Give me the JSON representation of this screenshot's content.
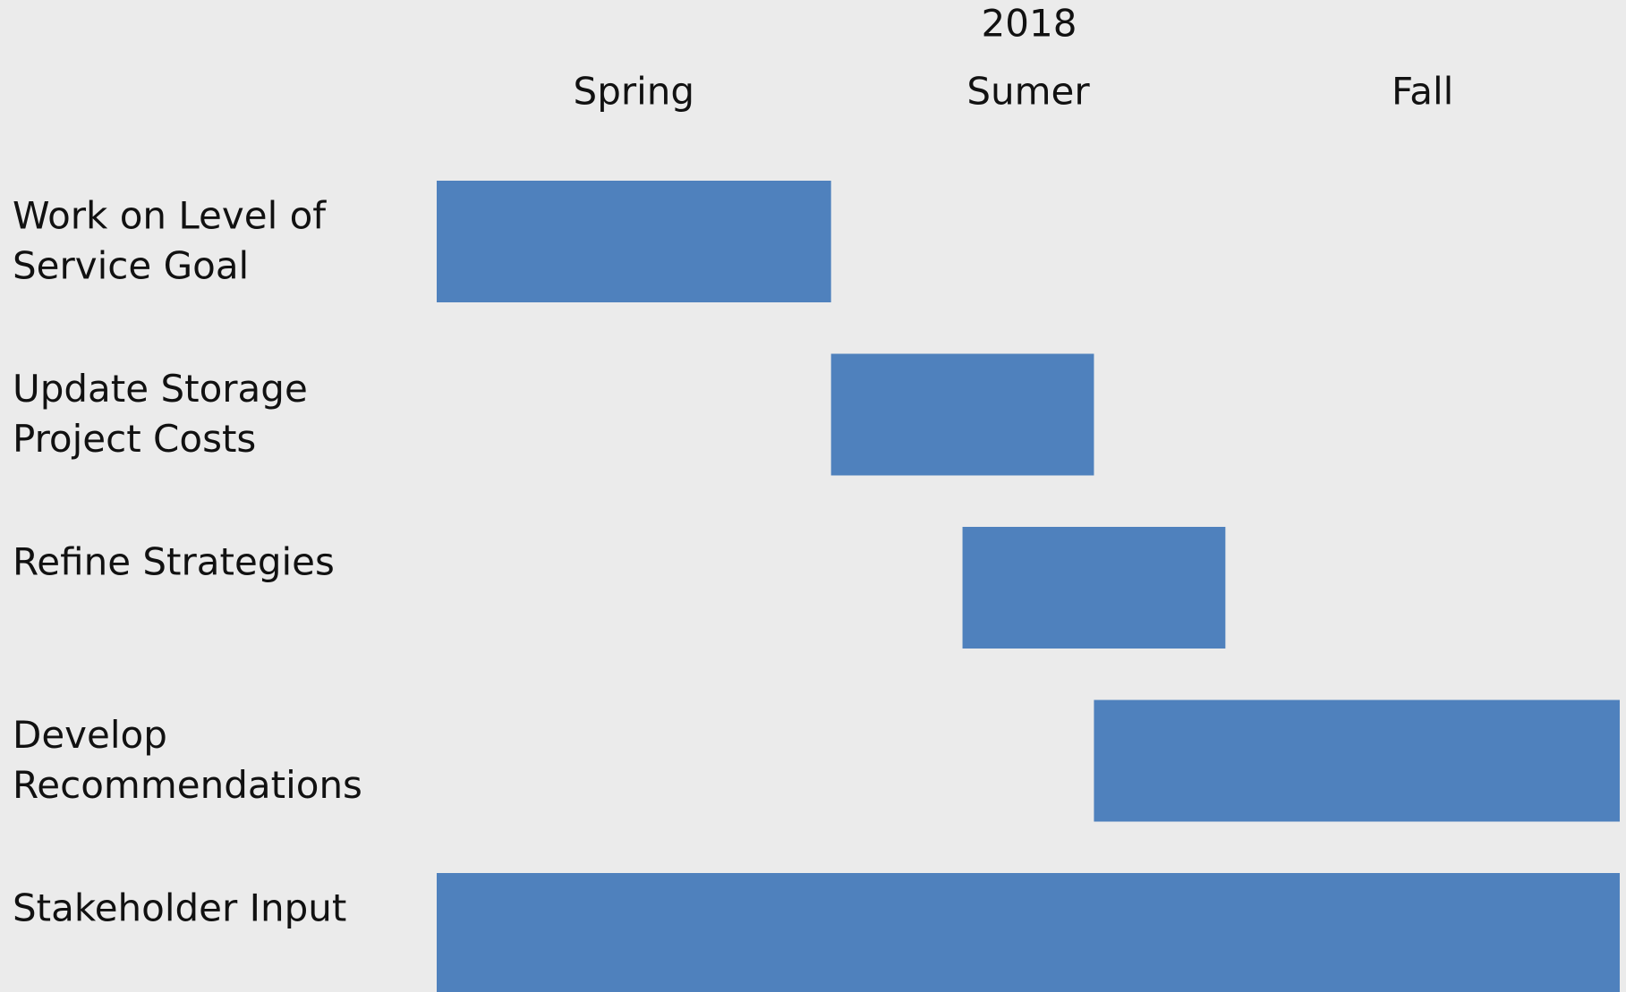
{
  "chart_data": {
    "type": "gantt",
    "title": "2018",
    "periods": [
      "Spring",
      "Sumer",
      "Fall"
    ],
    "xlim": [
      0,
      9
    ],
    "color": "#4f81bd",
    "tasks": [
      {
        "label": [
          "Work on Level of",
          "Service Goal"
        ],
        "start": 0,
        "end": 3
      },
      {
        "label": [
          "Update Storage",
          "Project Costs"
        ],
        "start": 3,
        "end": 5
      },
      {
        "label": [
          "Refine Strategies"
        ],
        "start": 4,
        "end": 6
      },
      {
        "label": [
          "Develop",
          "Recommendations"
        ],
        "start": 5,
        "end": 9
      },
      {
        "label": [
          "Stakeholder Input"
        ],
        "start": 0,
        "end": 9
      }
    ]
  }
}
